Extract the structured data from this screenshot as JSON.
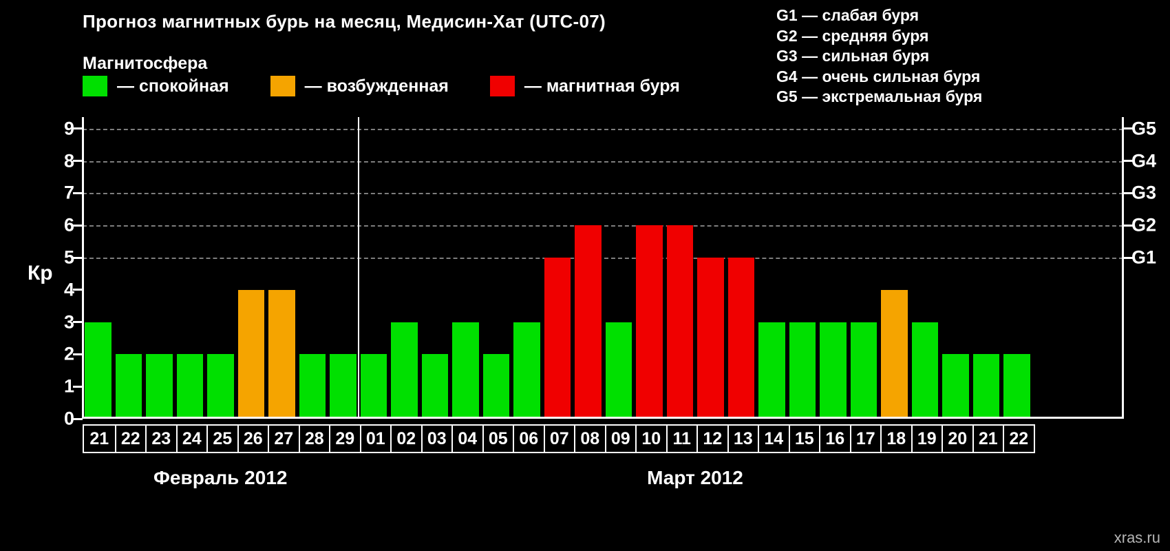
{
  "title": "Прогноз магнитных бурь на месяц, Медисин-Хат (UTC-07)",
  "legend": {
    "heading": "Магнитосфера",
    "items": [
      {
        "state": "calm",
        "label": "— спокойная",
        "color": "#00e000"
      },
      {
        "state": "excited",
        "label": "— возбужденная",
        "color": "#f5a400"
      },
      {
        "state": "storm",
        "label": "— магнитная буря",
        "color": "#f00000"
      }
    ]
  },
  "g_legend": [
    "G1 — слабая буря",
    "G2 — средняя буря",
    "G3 — сильная буря",
    "G4 — очень сильная буря",
    "G5 — экстремальная буря"
  ],
  "watermark": "xras.ru",
  "chart_data": {
    "type": "bar",
    "title": "Прогноз магнитных бурь на месяц, Медисин-Хат (UTC-07)",
    "ylabel": "Кр",
    "ylim": [
      0,
      9.4
    ],
    "grid": "dashed horizontal at G-levels",
    "yticks": [
      0,
      1,
      2,
      3,
      4,
      5,
      6,
      7,
      8,
      9
    ],
    "gridline_values": [
      5,
      6,
      7,
      8,
      9
    ],
    "right_axis_ticks": [
      {
        "label": "G1",
        "value": 5
      },
      {
        "label": "G2",
        "value": 6
      },
      {
        "label": "G3",
        "value": 7
      },
      {
        "label": "G4",
        "value": 8
      },
      {
        "label": "G5",
        "value": 9
      }
    ],
    "categories": [
      "21",
      "22",
      "23",
      "24",
      "25",
      "26",
      "27",
      "28",
      "29",
      "01",
      "02",
      "03",
      "04",
      "05",
      "06",
      "07",
      "08",
      "09",
      "10",
      "11",
      "12",
      "13",
      "14",
      "15",
      "16",
      "17",
      "18",
      "19",
      "20",
      "21",
      "22"
    ],
    "values": [
      3,
      2,
      2,
      2,
      2,
      4,
      4,
      2,
      2,
      2,
      3,
      2,
      3,
      2,
      3,
      5,
      6,
      3,
      6,
      6,
      5,
      5,
      3,
      3,
      3,
      3,
      4,
      3,
      2,
      2,
      2
    ],
    "color_thresholds": {
      "excited_min": 4,
      "storm_min": 5
    },
    "months": [
      {
        "label": "Февраль 2012",
        "days": 9
      },
      {
        "label": "Март 2012",
        "days": 22
      }
    ]
  }
}
